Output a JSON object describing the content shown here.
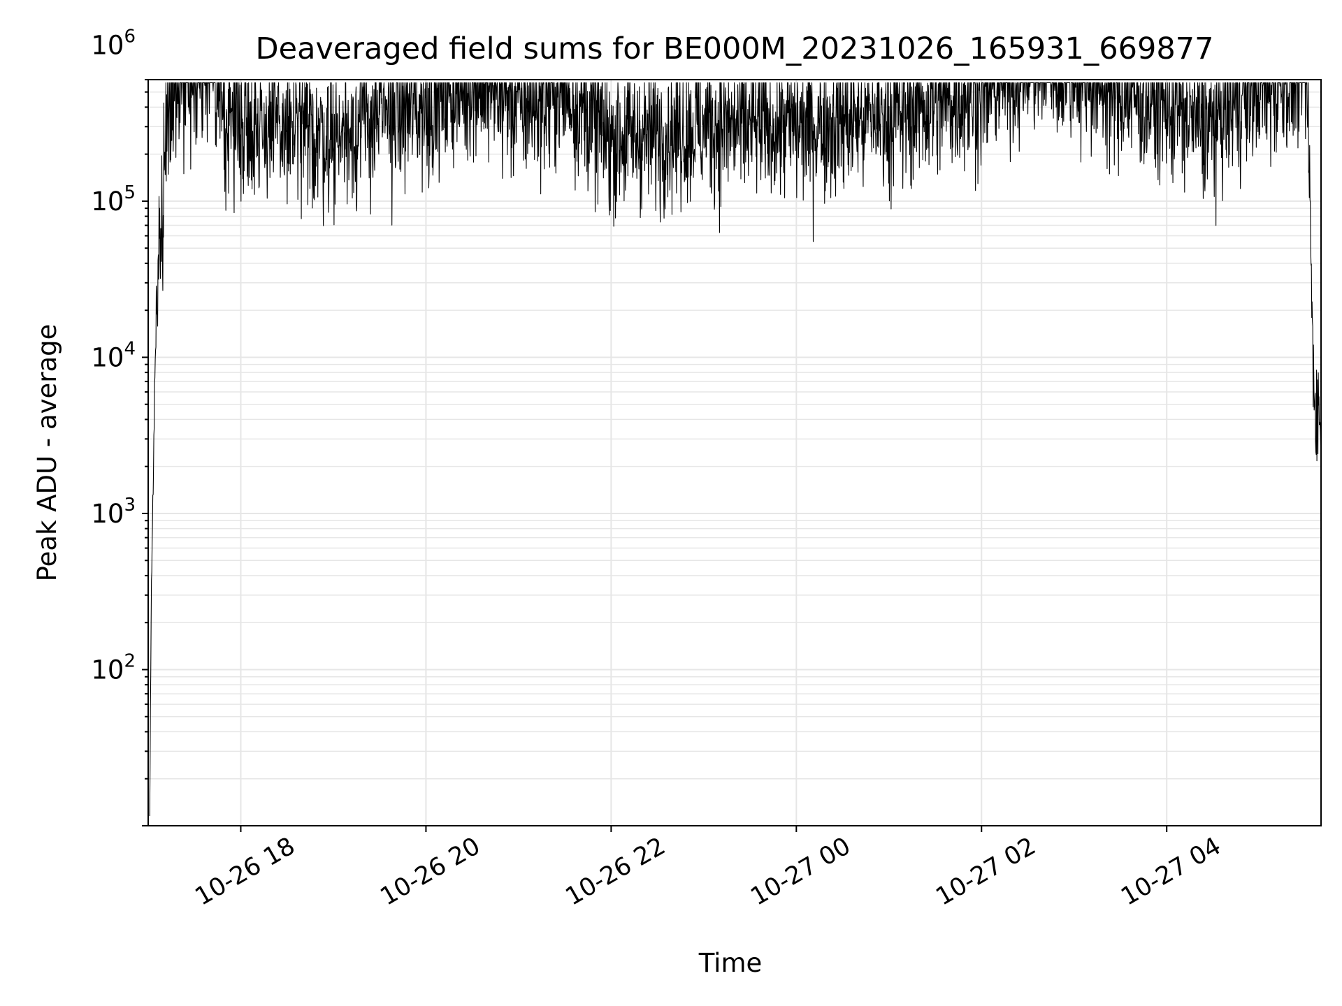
{
  "chart_data": {
    "type": "line",
    "title": "Deaveraged field sums for BE000M_20231026_165931_669877",
    "xlabel": "Time",
    "ylabel": "Peak ADU - average",
    "x_range": [
      "2023-10-26 17:00",
      "2023-10-27 05:40"
    ],
    "y_range": [
      10,
      600000
    ],
    "y_scale": "log",
    "grid": true,
    "legend": "none",
    "line_color": "#000000",
    "grid_color": "#e6e6e6",
    "x_ticks": [
      {
        "x": "2023-10-26 18:00",
        "label": "10-26 18"
      },
      {
        "x": "2023-10-26 20:00",
        "label": "10-26 20"
      },
      {
        "x": "2023-10-26 22:00",
        "label": "10-26 22"
      },
      {
        "x": "2023-10-27 00:00",
        "label": "10-27 00"
      },
      {
        "x": "2023-10-27 02:00",
        "label": "10-27 02"
      },
      {
        "x": "2023-10-27 04:00",
        "label": "10-27 04"
      }
    ],
    "y_ticks": [
      {
        "value": 100,
        "base": "10",
        "exp": "2"
      },
      {
        "value": 1000,
        "base": "10",
        "exp": "3"
      },
      {
        "value": 10000,
        "base": "10",
        "exp": "4"
      },
      {
        "value": 100000,
        "base": "10",
        "exp": "5"
      },
      {
        "value": 1000000,
        "base": "10",
        "exp": "6"
      }
    ],
    "series": [
      {
        "envelope": [
          {
            "x": "2023-10-26 17:01",
            "y": 10
          },
          {
            "x": "2023-10-26 17:02",
            "y": 300
          },
          {
            "x": "2023-10-26 17:03",
            "y": 1000
          },
          {
            "x": "2023-10-26 17:04",
            "y": 5000
          },
          {
            "x": "2023-10-26 17:05",
            "y": 15000
          },
          {
            "x": "2023-10-26 17:06",
            "y": 40000
          },
          {
            "x": "2023-10-26 17:08",
            "y": 60000
          },
          {
            "x": "2023-10-26 17:10",
            "y": 120000
          },
          {
            "x": "2023-10-26 17:12",
            "y": 400000
          },
          {
            "x": "2023-10-26 17:20",
            "y": 600000
          },
          {
            "x": "2023-10-26 17:30",
            "y": 800000
          },
          {
            "x": "2023-10-26 17:40",
            "y": 700000
          },
          {
            "x": "2023-10-26 17:50",
            "y": 350000
          },
          {
            "x": "2023-10-26 18:30",
            "y": 280000
          },
          {
            "x": "2023-10-26 19:00",
            "y": 260000
          },
          {
            "x": "2023-10-26 19:30",
            "y": 350000
          },
          {
            "x": "2023-10-26 20:00",
            "y": 400000
          },
          {
            "x": "2023-10-26 20:30",
            "y": 600000
          },
          {
            "x": "2023-10-26 21:00",
            "y": 400000
          },
          {
            "x": "2023-10-26 21:30",
            "y": 500000
          },
          {
            "x": "2023-10-26 22:00",
            "y": 250000
          },
          {
            "x": "2023-10-26 23:00",
            "y": 300000
          },
          {
            "x": "2023-10-27 00:00",
            "y": 300000
          },
          {
            "x": "2023-10-27 01:00",
            "y": 350000
          },
          {
            "x": "2023-10-27 02:00",
            "y": 500000
          },
          {
            "x": "2023-10-27 02:30",
            "y": 800000
          },
          {
            "x": "2023-10-27 03:00",
            "y": 700000
          },
          {
            "x": "2023-10-27 03:30",
            "y": 500000
          },
          {
            "x": "2023-10-27 04:00",
            "y": 400000
          },
          {
            "x": "2023-10-27 04:30",
            "y": 300000
          },
          {
            "x": "2023-10-27 04:50",
            "y": 500000
          },
          {
            "x": "2023-10-27 05:20",
            "y": 600000
          },
          {
            "x": "2023-10-27 05:30",
            "y": 800000
          },
          {
            "x": "2023-10-27 05:33",
            "y": 100000
          },
          {
            "x": "2023-10-27 05:34",
            "y": 20000
          },
          {
            "x": "2023-10-27 05:36",
            "y": 5000
          },
          {
            "x": "2023-10-27 05:40",
            "y": 4000
          }
        ]
      }
    ]
  }
}
